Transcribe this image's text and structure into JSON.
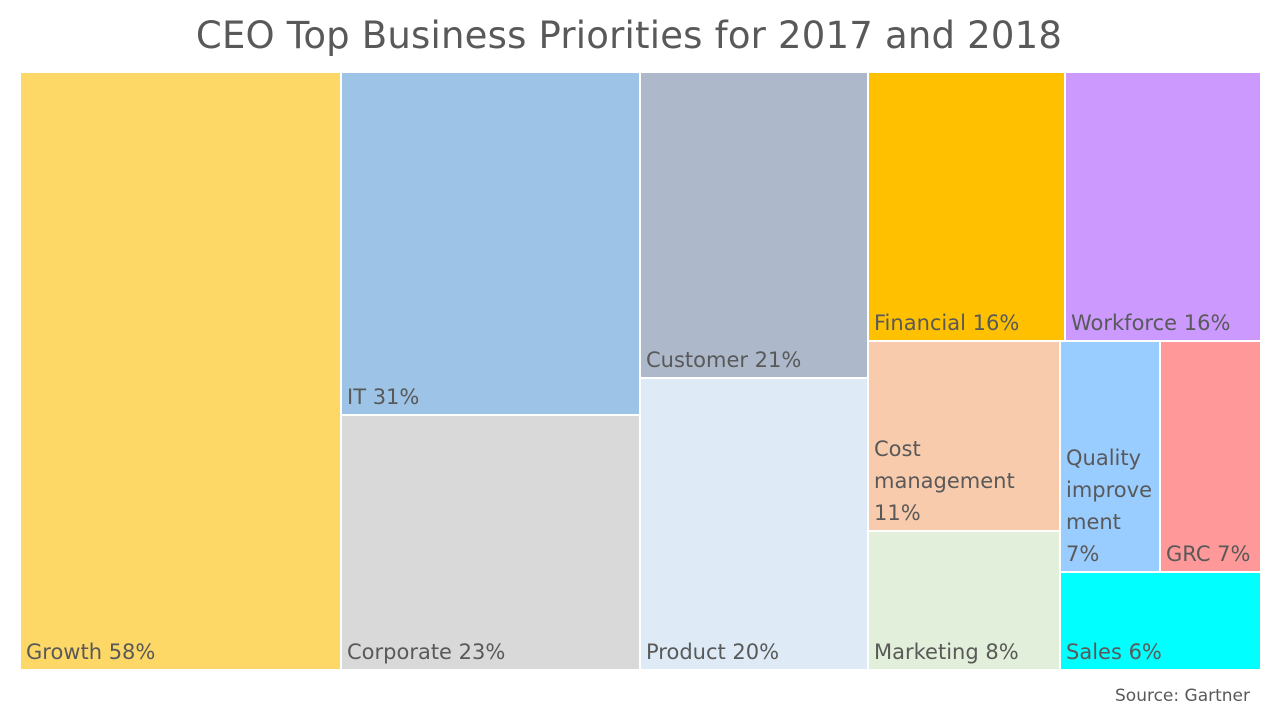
{
  "chart_data": {
    "type": "treemap",
    "title": "CEO Top Business Priorities for 2017 and 2018",
    "source": "Source: Gartner",
    "items": [
      {
        "name": "Growth",
        "label": [
          "Growth 58%"
        ],
        "value": 58,
        "color": "#FDD866"
      },
      {
        "name": "IT",
        "label": [
          "IT 31%"
        ],
        "value": 31,
        "color": "#9DC3E6"
      },
      {
        "name": "Corporate",
        "label": [
          "Corporate 23%"
        ],
        "value": 23,
        "color": "#D9D9D9"
      },
      {
        "name": "Customer",
        "label": [
          "Customer 21%"
        ],
        "value": 21,
        "color": "#ADB9CA"
      },
      {
        "name": "Product",
        "label": [
          "Product 20%"
        ],
        "value": 20,
        "color": "#DEEBF7"
      },
      {
        "name": "Financial",
        "label": [
          "Financial 16%"
        ],
        "value": 16,
        "color": "#FFC000"
      },
      {
        "name": "Workforce",
        "label": [
          "Workforce 16%"
        ],
        "value": 16,
        "color": "#CC99FF"
      },
      {
        "name": "Cost management",
        "label": [
          "Cost",
          "management",
          "11%"
        ],
        "value": 11,
        "color": "#F8CBAD"
      },
      {
        "name": "Marketing",
        "label": [
          "Marketing 8%"
        ],
        "value": 8,
        "color": "#E2EFDA"
      },
      {
        "name": "Quality improvement",
        "label": [
          "Quality",
          "improve",
          "ment",
          "7%"
        ],
        "value": 7,
        "color": "#99CCFF"
      },
      {
        "name": "GRC",
        "label": [
          "GRC 7%"
        ],
        "value": 7,
        "color": "#FF9999"
      },
      {
        "name": "Sales",
        "label": [
          "Sales 6%"
        ],
        "value": 6,
        "color": "#00FFFF"
      }
    ]
  }
}
